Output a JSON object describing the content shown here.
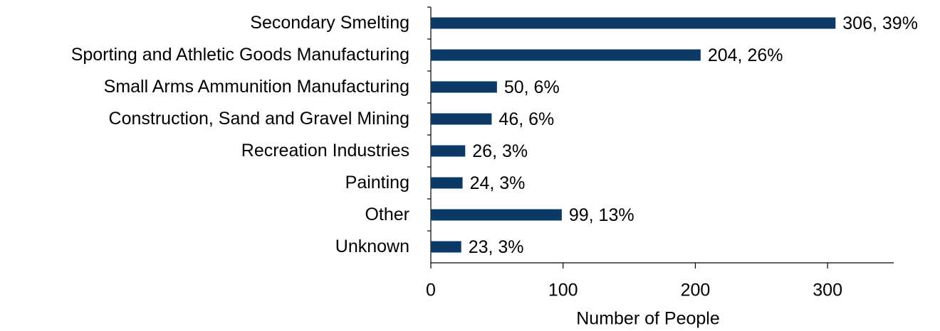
{
  "chart_data": {
    "type": "bar",
    "orientation": "horizontal",
    "xlabel": "Number of People",
    "categories": [
      "Secondary Smelting",
      "Sporting and Athletic Goods Manufacturing",
      "Small Arms Ammunition Manufacturing",
      "Construction, Sand and Gravel Mining",
      "Recreation Industries",
      "Painting",
      "Other",
      "Unknown"
    ],
    "values": [
      306,
      204,
      50,
      46,
      26,
      24,
      99,
      23
    ],
    "value_labels": [
      "306, 39%",
      "204, 26%",
      "50, 6%",
      "46, 6%",
      "26, 3%",
      "24, 3%",
      "99, 13%",
      "23, 3%"
    ],
    "color": "#0b3a66",
    "xlim": [
      0,
      350
    ],
    "xticks": [
      0,
      100,
      200,
      300
    ],
    "grid": false
  }
}
